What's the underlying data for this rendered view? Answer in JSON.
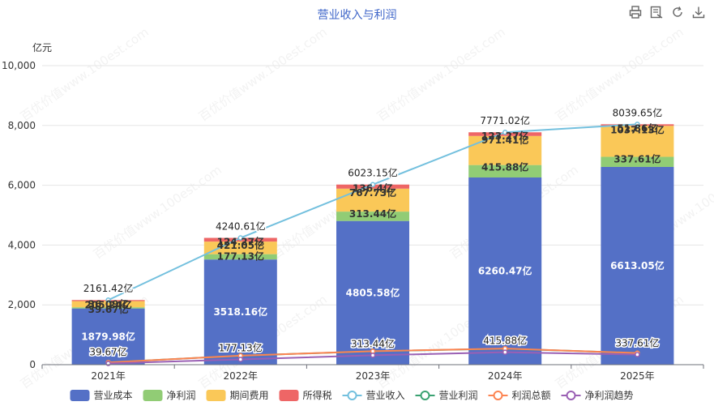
{
  "title": "营业收入与利润",
  "toolbar": {
    "icons": [
      "print-icon",
      "data-view-icon",
      "restore-icon",
      "download-icon"
    ]
  },
  "watermark": "百优价值www.100est.com",
  "chart_data": {
    "type": "bar",
    "stacked": true,
    "categories": [
      "2021年",
      "2022年",
      "2023年",
      "2024年",
      "2025年"
    ],
    "unit_label": "亿元",
    "ylim": [
      0,
      10000
    ],
    "yticks": [
      "0",
      "2,000",
      "4,000",
      "6,000",
      "8,000",
      "10,000"
    ],
    "ytick_values": [
      0,
      2000,
      4000,
      6000,
      8000,
      10000
    ],
    "grid": true,
    "legend_position": "bottom",
    "stack_series": [
      {
        "name": "营业成本",
        "color": "#5470c6",
        "values": [
          1879.98,
          3518.16,
          4805.58,
          6260.47,
          6613.05
        ],
        "labels": [
          "1879.98亿",
          "3518.16亿",
          "4805.58亿",
          "6260.47亿",
          "6613.05亿"
        ],
        "label_color": "#ffffff"
      },
      {
        "name": "净利润",
        "color": "#91cc75",
        "values": [
          39.67,
          177.13,
          313.44,
          415.88,
          337.61
        ],
        "labels": [
          "39.67亿",
          "177.13亿",
          "313.44亿",
          "415.88亿",
          "337.61亿"
        ],
        "label_color": "#333333"
      },
      {
        "name": "期间费用",
        "color": "#fac858",
        "values": [
          205.24,
          421.05,
          767.73,
          971.41,
          1037.13
        ],
        "labels": [
          "205.24亿",
          "421.05亿",
          "767.73亿",
          "971.41亿",
          "1037.13亿"
        ],
        "label_color": "#333333"
      },
      {
        "name": "所得税",
        "color": "#ee6666",
        "values": [
          36.09,
          124.27,
          136.4,
          123.27,
          51.86
        ],
        "labels": [
          "36.09亿",
          "124.27亿",
          "136.4亿",
          "123.27亿",
          "51.86亿"
        ],
        "label_color": "#333333"
      }
    ],
    "line_series": [
      {
        "name": "营业收入",
        "color": "#73c0de",
        "values": [
          2161.42,
          4240.61,
          6023.15,
          7771.02,
          8039.65
        ],
        "labels": [
          "2161.42亿",
          "4240.61亿",
          "6023.15亿",
          "7771.02亿",
          "8039.65亿"
        ]
      },
      {
        "name": "营业利润",
        "color": "#3ba272",
        "values": [
          75.0,
          300.0,
          450.0,
          535.0,
          390.0
        ]
      },
      {
        "name": "利润总额",
        "color": "#fc8452",
        "values": [
          75.76,
          301.4,
          449.84,
          539.15,
          389.47
        ]
      },
      {
        "name": "净利润趋势",
        "color": "#9a60b4",
        "values": [
          39.67,
          177.13,
          313.44,
          415.88,
          337.61
        ],
        "labels": [
          "39.67亿",
          "177.13亿",
          "313.44亿",
          "415.88亿",
          "337.61亿"
        ]
      }
    ]
  }
}
